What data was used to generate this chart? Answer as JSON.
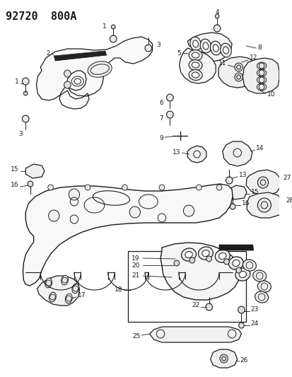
{
  "title": "92720  800A",
  "bg_color": "#ffffff",
  "lc": "#1a1a1a",
  "figsize": [
    4.14,
    5.33
  ],
  "dpi": 100
}
